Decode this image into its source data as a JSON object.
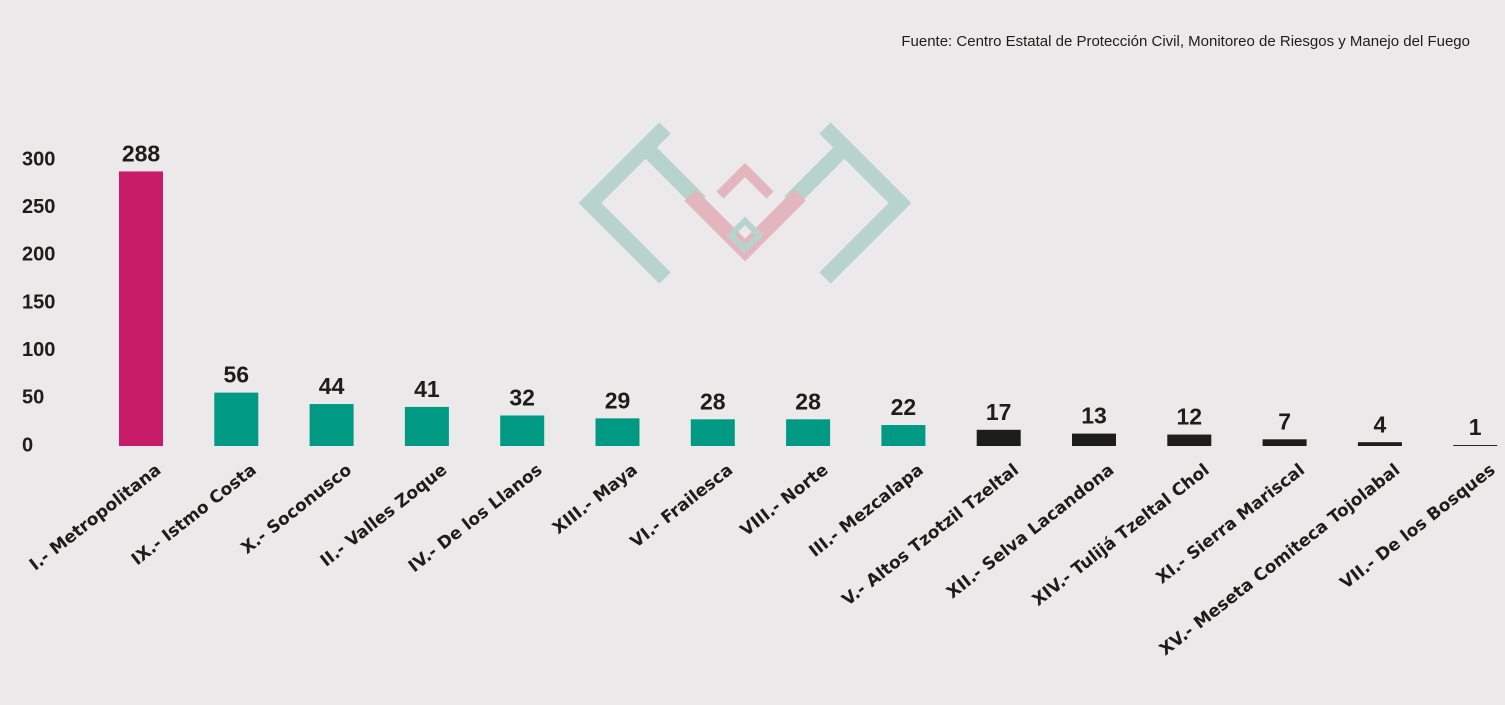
{
  "chart_data": {
    "type": "bar",
    "source": "Fuente: Centro Estatal de Protección Civil, Monitoreo de Riesgos y Manejo del Fuego",
    "categories": [
      "I.- Metropolitana",
      "IX.- Istmo Costa",
      "X.- Soconusco",
      "II.- Valles Zoque",
      "IV.- De los Llanos",
      "XIII.- Maya",
      "VI.- Frailesca",
      "VIII.- Norte",
      "III.- Mezcalapa",
      "V.- Altos Tzotzil Tzeltal",
      "XII.- Selva Lacandona",
      "XIV.- Tulijá Tzeltal Chol",
      "XI.- Sierra Mariscal",
      "XV.- Meseta Comiteca Tojolabal",
      "VII.- De los Bosques"
    ],
    "values": [
      288,
      56,
      44,
      41,
      32,
      29,
      28,
      28,
      22,
      17,
      13,
      12,
      7,
      4,
      1
    ],
    "colors": [
      "#c81b68",
      "#009a84",
      "#009a84",
      "#009a84",
      "#009a84",
      "#009a84",
      "#009a84",
      "#009a84",
      "#009a84",
      "#1d1d1b",
      "#1d1d1b",
      "#1d1d1b",
      "#1d1d1b",
      "#1d1d1b",
      "#1d1d1b"
    ],
    "ylim": [
      0,
      300
    ],
    "yticks": [
      0,
      50,
      100,
      150,
      200,
      250,
      300
    ],
    "grid": false
  }
}
